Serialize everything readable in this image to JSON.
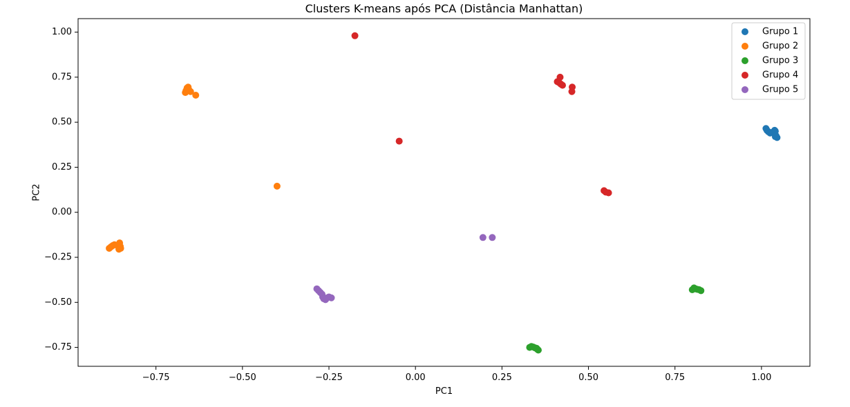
{
  "chart_data": {
    "type": "scatter",
    "title": "Clusters K-means após PCA (Distância Manhattan)",
    "xlabel": "PC1",
    "ylabel": "PC2",
    "xlim": [
      -0.975,
      1.14
    ],
    "ylim": [
      -0.855,
      1.075
    ],
    "xticks": [
      -0.75,
      -0.5,
      -0.25,
      0.0,
      0.25,
      0.5,
      0.75,
      1.0
    ],
    "xtick_labels": [
      "−0.75",
      "−0.50",
      "−0.25",
      "0.00",
      "0.25",
      "0.50",
      "0.75",
      "1.00"
    ],
    "yticks": [
      -0.75,
      -0.5,
      -0.25,
      0.0,
      0.25,
      0.5,
      0.75,
      1.0
    ],
    "ytick_labels": [
      "−0.75",
      "−0.50",
      "−0.25",
      "0.00",
      "0.25",
      "0.50",
      "0.75",
      "1.00"
    ],
    "grid": false,
    "legend_position": "top-right",
    "series": [
      {
        "name": "Grupo 1",
        "color": "#1f77b4",
        "points": [
          [
            1.013,
            0.465
          ],
          [
            1.016,
            0.455
          ],
          [
            1.02,
            0.447
          ],
          [
            1.025,
            0.44
          ],
          [
            1.03,
            0.443
          ],
          [
            1.038,
            0.455
          ],
          [
            1.04,
            0.45
          ],
          [
            1.04,
            0.42
          ],
          [
            1.045,
            0.415
          ],
          [
            1.042,
            0.425
          ]
        ]
      },
      {
        "name": "Grupo 2",
        "color": "#ff7f0e",
        "points": [
          [
            -0.665,
            0.665
          ],
          [
            -0.663,
            0.675
          ],
          [
            -0.66,
            0.69
          ],
          [
            -0.657,
            0.695
          ],
          [
            -0.655,
            0.68
          ],
          [
            -0.65,
            0.67
          ],
          [
            -0.635,
            0.65
          ],
          [
            -0.4,
            0.145
          ],
          [
            -0.885,
            -0.2
          ],
          [
            -0.88,
            -0.192
          ],
          [
            -0.875,
            -0.185
          ],
          [
            -0.87,
            -0.18
          ],
          [
            -0.86,
            -0.185
          ],
          [
            -0.855,
            -0.17
          ],
          [
            -0.853,
            -0.19
          ],
          [
            -0.852,
            -0.2
          ],
          [
            -0.857,
            -0.205
          ]
        ]
      },
      {
        "name": "Grupo 3",
        "color": "#2ca02c",
        "points": [
          [
            0.33,
            -0.75
          ],
          [
            0.335,
            -0.745
          ],
          [
            0.34,
            -0.748
          ],
          [
            0.345,
            -0.752
          ],
          [
            0.35,
            -0.755
          ],
          [
            0.352,
            -0.76
          ],
          [
            0.355,
            -0.765
          ],
          [
            0.8,
            -0.43
          ],
          [
            0.805,
            -0.42
          ],
          [
            0.81,
            -0.425
          ],
          [
            0.815,
            -0.428
          ],
          [
            0.82,
            -0.43
          ],
          [
            0.825,
            -0.435
          ]
        ]
      },
      {
        "name": "Grupo 4",
        "color": "#d62728",
        "points": [
          [
            -0.175,
            0.98
          ],
          [
            -0.047,
            0.395
          ],
          [
            0.41,
            0.725
          ],
          [
            0.415,
            0.72
          ],
          [
            0.418,
            0.75
          ],
          [
            0.42,
            0.712
          ],
          [
            0.425,
            0.705
          ],
          [
            0.452,
            0.67
          ],
          [
            0.453,
            0.695
          ],
          [
            0.545,
            0.12
          ],
          [
            0.55,
            0.112
          ],
          [
            0.558,
            0.108
          ]
        ]
      },
      {
        "name": "Grupo 5",
        "color": "#9467bd",
        "points": [
          [
            0.195,
            -0.14
          ],
          [
            0.222,
            -0.14
          ],
          [
            -0.285,
            -0.425
          ],
          [
            -0.28,
            -0.435
          ],
          [
            -0.275,
            -0.445
          ],
          [
            -0.27,
            -0.455
          ],
          [
            -0.268,
            -0.47
          ],
          [
            -0.265,
            -0.48
          ],
          [
            -0.26,
            -0.485
          ],
          [
            -0.255,
            -0.475
          ],
          [
            -0.25,
            -0.47
          ],
          [
            -0.243,
            -0.475
          ]
        ]
      }
    ]
  }
}
